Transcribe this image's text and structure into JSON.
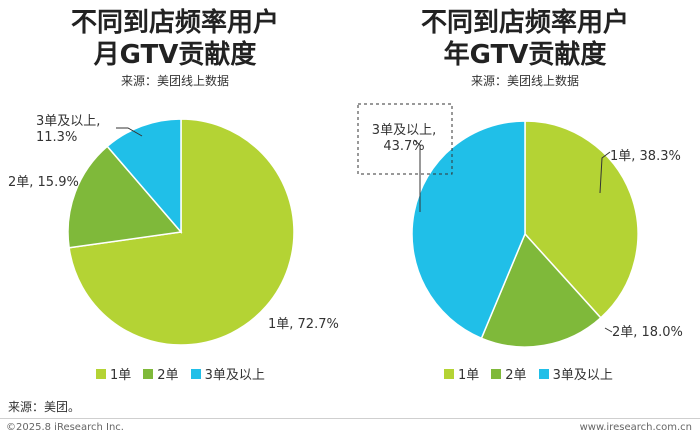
{
  "chart_data": [
    {
      "type": "pie",
      "title": [
        "不同到店频率用户",
        "月GTV贡献度"
      ],
      "subtitle": "来源：美团线上数据",
      "categories": [
        "1单",
        "2单",
        "3单及以上"
      ],
      "values": [
        72.7,
        15.9,
        11.3
      ],
      "labels": [
        "1单, 72.7%",
        "2单, 15.9%",
        "3单及以上, 11.3%"
      ],
      "colors": [
        "#b4d334",
        "#7fb93a",
        "#20bfe8"
      ],
      "legend_position": "bottom"
    },
    {
      "type": "pie",
      "title": [
        "不同到店频率用户",
        "年GTV贡献度"
      ],
      "subtitle": "来源：美团线上数据",
      "categories": [
        "1单",
        "2单",
        "3单及以上"
      ],
      "values": [
        38.3,
        18.0,
        43.7
      ],
      "labels": [
        "1单, 38.3%",
        "2单, 18.0%",
        "3单及以上, 43.7%"
      ],
      "colors": [
        "#b4d334",
        "#7fb93a",
        "#20bfe8"
      ],
      "legend_position": "bottom"
    }
  ],
  "footer": {
    "source": "来源：美团。",
    "copyright": "©2025.8 iResearch Inc.",
    "website": "www.iresearch.com.cn"
  }
}
